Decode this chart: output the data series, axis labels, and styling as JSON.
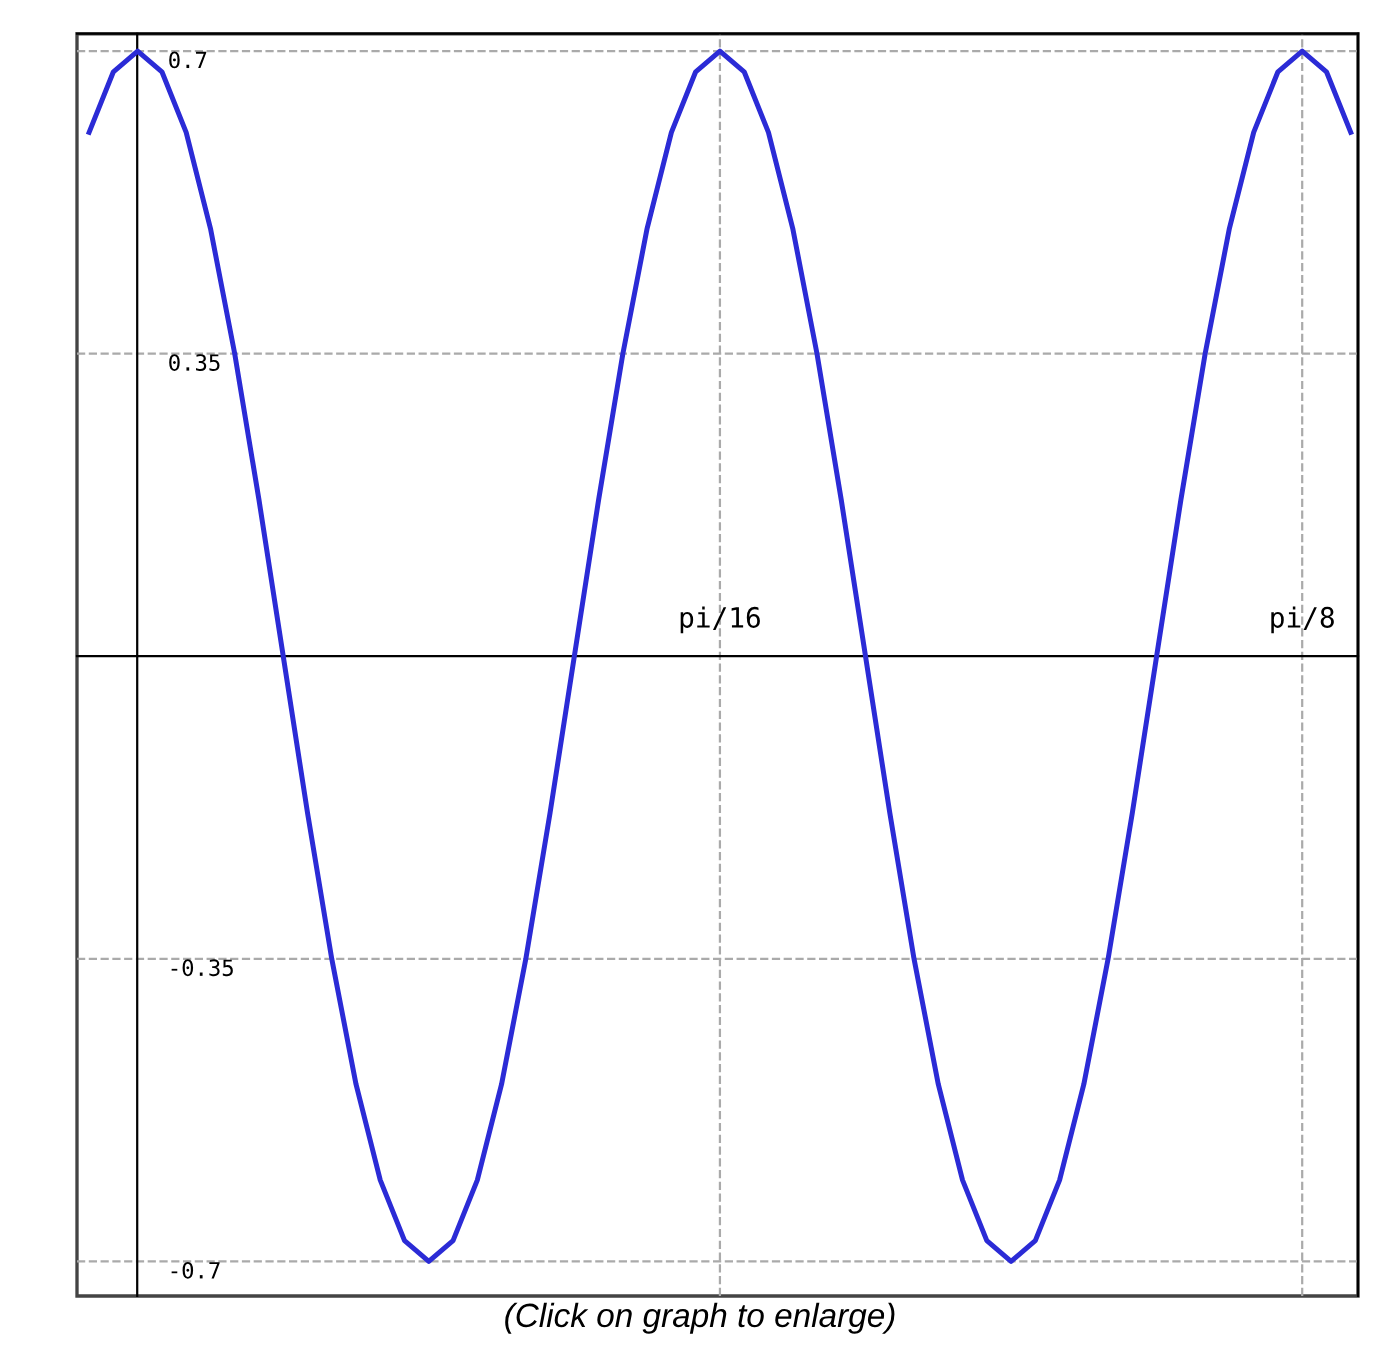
{
  "chart_data": {
    "type": "line",
    "categories": [
      null,
      null,
      null,
      null,
      null,
      null,
      null,
      null,
      null,
      null,
      null,
      null,
      null,
      null,
      null,
      null,
      null,
      null,
      null,
      null,
      null,
      null,
      null,
      null,
      null,
      null,
      "pi/16",
      null,
      null,
      null,
      null,
      null,
      null,
      null,
      null,
      null,
      null,
      null,
      null,
      null,
      null,
      null,
      null,
      null,
      null,
      null,
      null,
      null,
      null,
      null,
      "pi/8",
      null,
      null
    ],
    "series": [
      {
        "color": "#2b2bd6",
        "values": [
          0.606,
          0.676,
          0.7,
          0.676,
          0.606,
          0.495,
          0.35,
          0.181,
          0,
          -0.181,
          -0.35,
          -0.495,
          -0.606,
          -0.676,
          -0.7,
          -0.676,
          -0.606,
          -0.495,
          -0.35,
          -0.181,
          0,
          0.181,
          0.35,
          0.495,
          0.606,
          0.676,
          0.7,
          0.676,
          0.606,
          0.495,
          0.35,
          0.181,
          0,
          -0.181,
          -0.35,
          -0.495,
          -0.606,
          -0.676,
          -0.7,
          -0.676,
          -0.606,
          -0.495,
          -0.35,
          -0.181,
          0,
          0.181,
          0.35,
          0.495,
          0.606,
          0.676,
          0.7,
          0.676,
          0.606
        ]
      }
    ],
    "ylim": [
      -0.74,
      0.72
    ],
    "yticks": [
      -0.7,
      -0.35,
      0.35,
      0.7
    ],
    "grid": true,
    "marker": "none",
    "line_style": "solid",
    "annotations": [
      "(Click on graph to enlarge)"
    ]
  }
}
